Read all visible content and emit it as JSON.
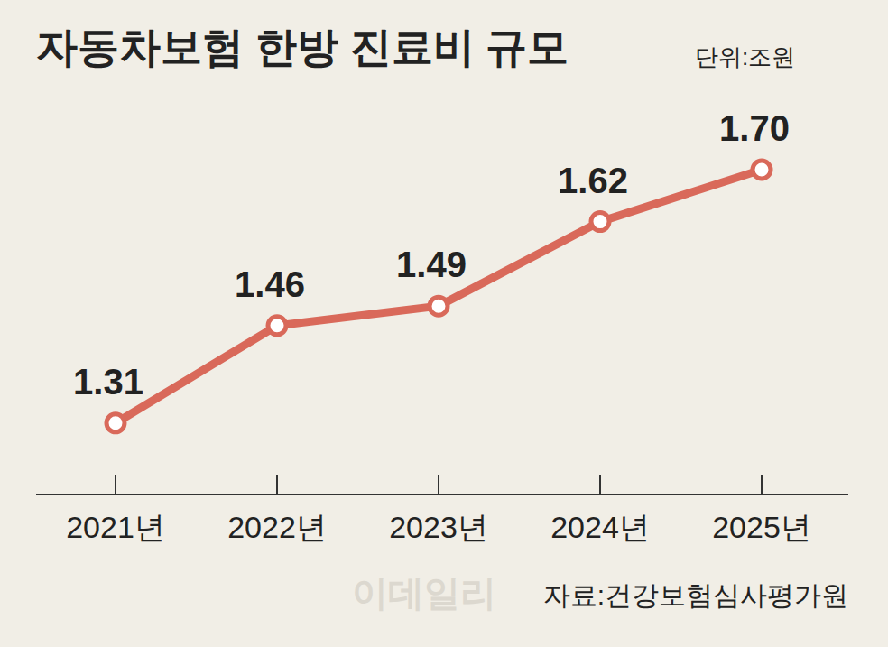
{
  "chart_data": {
    "type": "line",
    "title": "자동차보험 한방 진료비 규모",
    "subtitle": "단위:조원",
    "source": "자료:건강보험심사평가원",
    "watermark": "이데일리",
    "categories": [
      "2021년",
      "2022년",
      "2023년",
      "2024년",
      "2025년"
    ],
    "values": [
      1.31,
      1.46,
      1.49,
      1.62,
      1.7
    ],
    "value_labels": [
      "1.31",
      "1.46",
      "1.49",
      "1.62",
      "1.70"
    ],
    "color": "#d9695a",
    "ylim": [
      1.2,
      1.8
    ],
    "grid": false,
    "data_labels": true,
    "tick_labels": "x",
    "marker": "circle",
    "line_style": "solid"
  }
}
